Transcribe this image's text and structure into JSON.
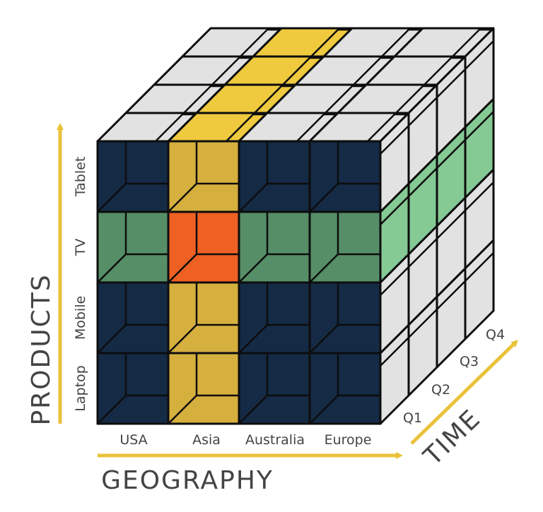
{
  "axes": {
    "products": {
      "title": "PRODUCTS",
      "labels": [
        "Laptop",
        "Mobile",
        "TV",
        "Tablet"
      ]
    },
    "geography": {
      "title": "GEOGRAPHY",
      "labels": [
        "USA",
        "Asia",
        "Australia",
        "Europe"
      ]
    },
    "time": {
      "title": "TIME",
      "labels": [
        "Q1",
        "Q2",
        "Q3",
        "Q4"
      ]
    }
  },
  "highlights": {
    "geography_column": "Asia",
    "product_row": "TV",
    "intersection": "Asia / TV"
  },
  "colors": {
    "arrow": "#e9c23a",
    "cube_base": "#1f4670",
    "cube_dark": "#142a45",
    "yellow": "#efc93e",
    "yellow_dark": "#d6b03e",
    "green": "#85c994",
    "green_dark": "#568e67",
    "orange": "#f5941d",
    "orange_dark": "#ef6023",
    "grey": "#e2e2e2",
    "grey_dark": "#c4c4c4"
  }
}
